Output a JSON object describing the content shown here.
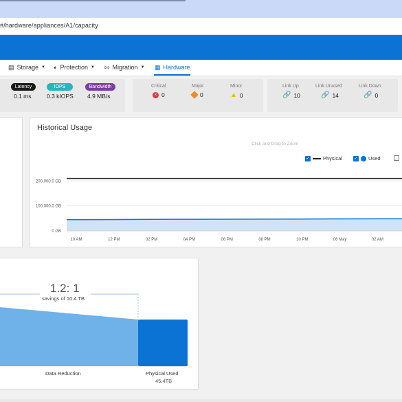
{
  "browser": {
    "url": "#/hardware/appliances/A1/capacity"
  },
  "nav": {
    "items": [
      {
        "label": "Storage",
        "icon": "storage-icon"
      },
      {
        "label": "Protection",
        "icon": "shield-icon"
      },
      {
        "label": "Migration",
        "icon": "migration-icon"
      },
      {
        "label": "Hardware",
        "icon": "hardware-icon"
      }
    ],
    "active": "Hardware"
  },
  "performance": {
    "latency": {
      "label": "Latency",
      "value": "0.1 ms",
      "color": "#1a1a1a"
    },
    "iops": {
      "label": "IOPS",
      "value": "0.3 kIOPS",
      "color": "#2bb3c0"
    },
    "bandwidth": {
      "label": "Bandwidth",
      "value": "4.9 MB/s",
      "color": "#7b3fa0"
    }
  },
  "alerts": {
    "critical": {
      "label": "Critical",
      "value": "0",
      "color": "#d9363e"
    },
    "major": {
      "label": "Major",
      "value": "0",
      "color": "#f08a24"
    },
    "minor": {
      "label": "Minor",
      "value": "0",
      "color": "#f5b800"
    }
  },
  "links": {
    "up": {
      "label": "Link Up",
      "value": "10",
      "color": "#6aa820"
    },
    "unused": {
      "label": "Link Unused",
      "value": "14",
      "color": "#888888"
    },
    "down": {
      "label": "Link Down",
      "value": "0",
      "color": "#d9363e"
    }
  },
  "historical_usage": {
    "title": "Historical Usage",
    "hint": "Click and Drag to Zoom",
    "legend": [
      {
        "label": "Physical",
        "checked": true,
        "color": "#222222"
      },
      {
        "label": "Used",
        "checked": true,
        "color": "#0b73d3"
      },
      {
        "label": "",
        "checked": false,
        "color": "#777777"
      }
    ]
  },
  "chart_data": {
    "type": "area",
    "title": "Historical Usage",
    "xlabel": "",
    "ylabel": "",
    "x": [
      "10 AM",
      "12 PM",
      "02 PM",
      "04 PM",
      "06 PM",
      "08 PM",
      "10 PM",
      "06 May",
      "02 AM"
    ],
    "y_ticks": [
      "0 GB",
      "100,000.0 GB",
      "200,000.0 GB"
    ],
    "ylim": [
      0,
      220000
    ],
    "series": [
      {
        "name": "Physical",
        "type": "line",
        "values": [
          210000,
          210000,
          210000,
          210000,
          210000,
          210000,
          210000,
          210000,
          210000
        ],
        "color": "#222222"
      },
      {
        "name": "Used",
        "type": "area",
        "values": [
          45000,
          45500,
          46000,
          46400,
          46800,
          47200,
          47600,
          48000,
          48300
        ],
        "color": "#0b73d3"
      }
    ],
    "grid": true,
    "legend": "top-right"
  },
  "efficiency": {
    "ratio": "1.2: 1",
    "savings": "savings of 10.4 TB",
    "data_reduction_label": "Data Reduction",
    "physical_used_label": "Physical Used",
    "physical_used_value": "45.4TB",
    "colors": {
      "reduction": "#6fb2ea",
      "physical": "#0b73d3"
    }
  }
}
